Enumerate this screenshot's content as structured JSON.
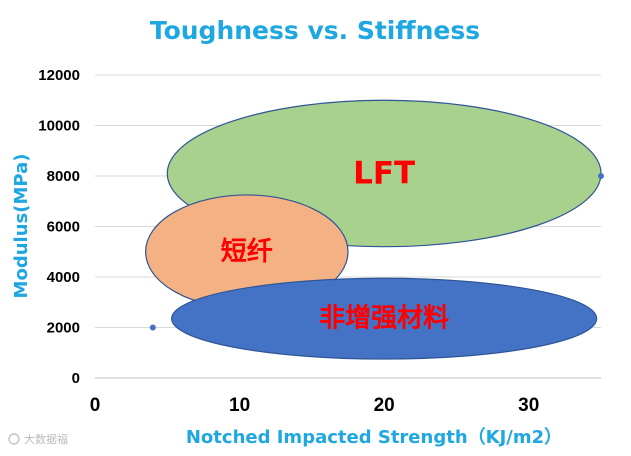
{
  "chart_data": {
    "type": "scatter",
    "title": "Toughness vs. Stiffness",
    "xlabel": "Notched Impacted Strength（KJ/m2）",
    "ylabel": "Modulus(MPa)",
    "xlim": [
      0,
      35
    ],
    "ylim": [
      0,
      12000
    ],
    "x_ticks": [
      "0",
      "10",
      "20",
      "30"
    ],
    "y_ticks": [
      "0",
      "2000",
      "4000",
      "6000",
      "8000",
      "10000",
      "12000"
    ],
    "grid": "horizontal",
    "series": [
      {
        "points": [
          {
            "x": 4,
            "y": 2000
          },
          {
            "x": 35,
            "y": 8000
          }
        ],
        "color": "#4472C4"
      }
    ],
    "regions": [
      {
        "label": "LFT",
        "cx": 20,
        "cy": 8100,
        "rx": 15,
        "ry": 2900,
        "fill": "#A9D18E",
        "stroke": "#2F5597",
        "label_size": 31
      },
      {
        "label": "短纤",
        "cx": 10.5,
        "cy": 5000,
        "rx": 7,
        "ry": 2250,
        "fill": "#F4B183",
        "stroke": "#2F5597",
        "label_size": 26
      },
      {
        "label": "非增强材料",
        "cx": 20,
        "cy": 2350,
        "rx": 14.7,
        "ry": 1600,
        "fill": "#4472C4",
        "stroke": "#2F5597",
        "label_size": 26
      }
    ]
  },
  "watermark": "大数据福"
}
